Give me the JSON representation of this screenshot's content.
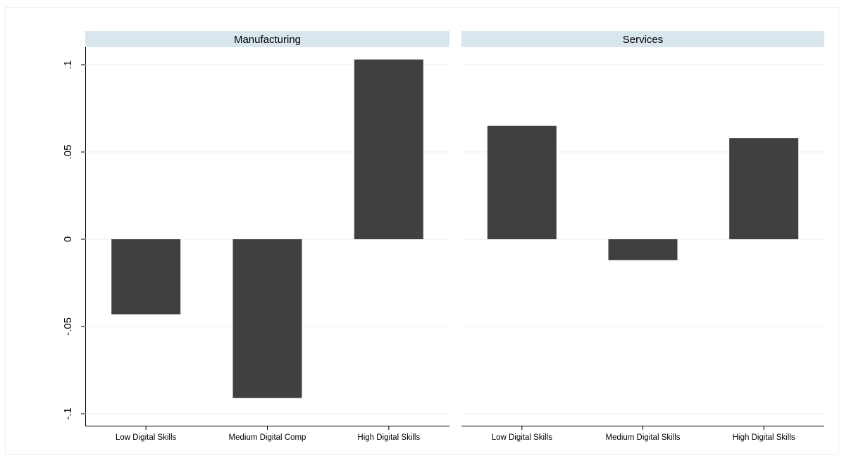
{
  "chart_data": {
    "type": "bar",
    "orientation": "vertical",
    "layout": "two side-by-side facet panels sharing a y-axis",
    "ylim": [
      -0.1,
      0.1
    ],
    "y_ticks": [
      -0.1,
      -0.05,
      0,
      0.05,
      0.1
    ],
    "y_tick_labels": [
      "-.1",
      "-.05",
      "0",
      ".05",
      ".1"
    ],
    "y_tick_label_rotation": "vertical",
    "grid": "horizontal",
    "legend": "none",
    "colors": {
      "bar": "#404040",
      "facet_header": "#d9e6ee",
      "gridline": "#eaf0f3",
      "axis": "#000000",
      "border": "#e8f0f4"
    },
    "panels": [
      {
        "title": "Manufacturing",
        "categories": [
          "Low Digital Skills",
          "Medium Digital Comp",
          "High Digital Skills"
        ],
        "values": [
          -0.043,
          -0.091,
          0.103
        ]
      },
      {
        "title": "Services",
        "categories": [
          "Low Digital Skills",
          "Medium Digital Skills",
          "High Digital Skills"
        ],
        "values": [
          0.065,
          -0.012,
          0.058
        ]
      }
    ]
  }
}
